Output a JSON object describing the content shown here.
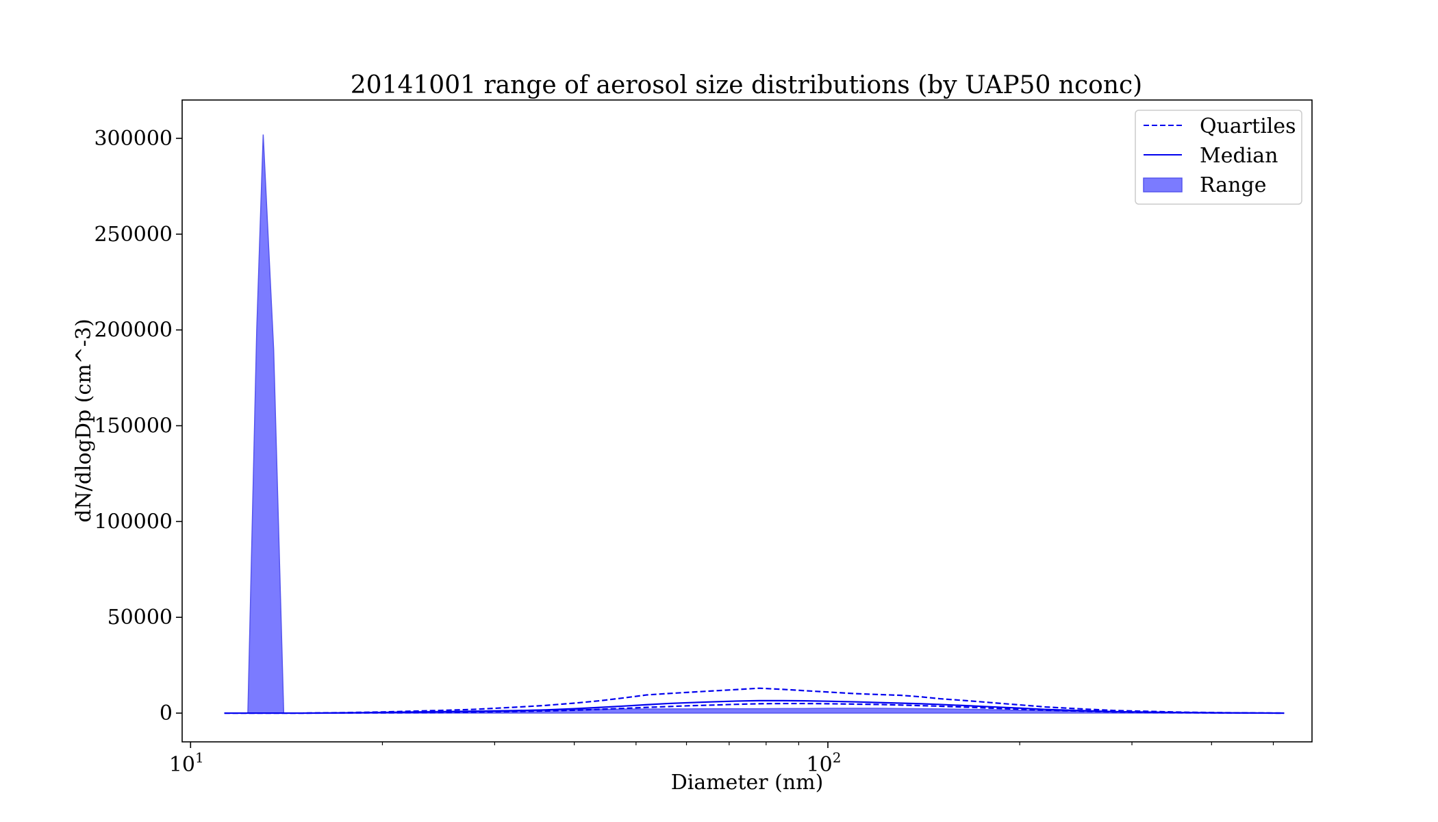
{
  "chart_data": {
    "type": "area",
    "title": "20141001 range of aerosol size distributions (by UAP50 nconc)",
    "xlabel": "Diameter (nm)",
    "ylabel": "dN/dlogDp (cm^-3)",
    "xscale": "log",
    "xlim": [
      9.7,
      575
    ],
    "ylim": [
      -15000,
      320000
    ],
    "x_ticks": [
      {
        "base": "10",
        "exp": "1"
      },
      {
        "base": "10",
        "exp": "2"
      }
    ],
    "y_ticks": [
      "0",
      "50000",
      "100000",
      "150000",
      "200000",
      "250000",
      "300000"
    ],
    "y_tick_values": [
      0,
      50000,
      100000,
      150000,
      200000,
      250000,
      300000
    ],
    "legend": {
      "placement": "top-right",
      "entries": [
        {
          "label": "Quartiles",
          "style": "dashed"
        },
        {
          "label": "Median",
          "style": "solid"
        },
        {
          "label": "Range",
          "style": "fill"
        }
      ]
    },
    "colors": {
      "line": "#0000ee",
      "fill": "#7b7bff",
      "fill_edge": "#5555ee"
    },
    "diameters": [
      11.3,
      12.3,
      12.7,
      13.0,
      13.5,
      14.0,
      14.5,
      15,
      17,
      20,
      24,
      28,
      32,
      36,
      40,
      44,
      48,
      52,
      56,
      60,
      66,
      72,
      78,
      85,
      92,
      100,
      110,
      120,
      130,
      140,
      150,
      165,
      180,
      200,
      220,
      250,
      280,
      320,
      360,
      410,
      460,
      520
    ],
    "range_max": [
      0,
      0,
      200000,
      302000,
      190000,
      0,
      0,
      0,
      0,
      500,
      900,
      1200,
      1500,
      1700,
      1900,
      2000,
      2100,
      2100,
      2200,
      2200,
      2300,
      2300,
      2300,
      2400,
      2400,
      2500,
      2500,
      2500,
      2400,
      2300,
      2200,
      2000,
      1800,
      1500,
      1200,
      900,
      600,
      400,
      200,
      100,
      50,
      0
    ],
    "range_min": [
      0,
      0,
      0,
      0,
      0,
      0,
      0,
      0,
      0,
      0,
      0,
      0,
      0,
      0,
      0,
      0,
      0,
      0,
      0,
      0,
      0,
      0,
      0,
      0,
      0,
      0,
      0,
      0,
      0,
      0,
      0,
      0,
      0,
      0,
      0,
      0,
      0,
      0,
      0,
      0,
      0,
      0
    ],
    "series": [
      {
        "name": "Median",
        "values": [
          0,
          0,
          0,
          0,
          0,
          0,
          0,
          0,
          100,
          300,
          600,
          900,
          1200,
          1700,
          2300,
          3000,
          3700,
          4400,
          5000,
          5400,
          5900,
          6300,
          6500,
          6500,
          6400,
          6200,
          5900,
          5500,
          5200,
          4900,
          4500,
          3900,
          3300,
          2600,
          1900,
          1300,
          800,
          500,
          300,
          150,
          80,
          0
        ]
      },
      {
        "name": "Upper quartile",
        "values": [
          0,
          0,
          0,
          0,
          0,
          0,
          0,
          0,
          200,
          600,
          1300,
          2000,
          3000,
          4000,
          5200,
          6500,
          8000,
          9500,
          10200,
          10800,
          11600,
          12300,
          13000,
          12400,
          11700,
          11000,
          10200,
          9700,
          9300,
          8500,
          7500,
          6500,
          5500,
          4300,
          3200,
          2200,
          1400,
          900,
          500,
          250,
          100,
          0
        ]
      },
      {
        "name": "Lower quartile",
        "values": [
          0,
          0,
          0,
          0,
          0,
          0,
          0,
          0,
          50,
          150,
          300,
          500,
          800,
          1100,
          1500,
          2000,
          2500,
          3000,
          3400,
          3800,
          4200,
          4600,
          4900,
          5000,
          5000,
          4900,
          4700,
          4500,
          4200,
          3900,
          3600,
          3100,
          2600,
          2000,
          1500,
          1000,
          600,
          350,
          200,
          100,
          50,
          0
        ]
      }
    ]
  }
}
